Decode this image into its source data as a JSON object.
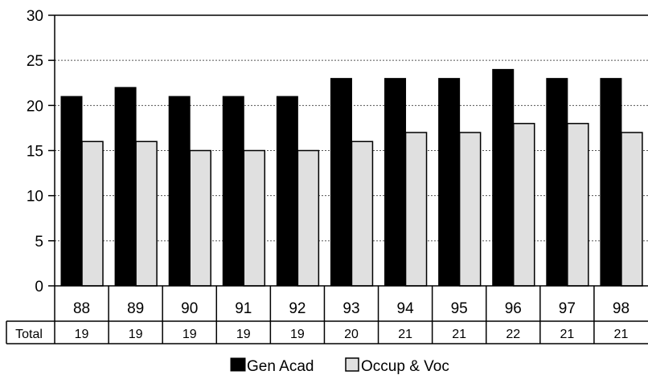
{
  "chart_data": {
    "type": "bar",
    "categories": [
      "88",
      "89",
      "90",
      "91",
      "92",
      "93",
      "94",
      "95",
      "96",
      "97",
      "98"
    ],
    "series": [
      {
        "name": "Gen Acad",
        "values": [
          21,
          22,
          21,
          21,
          21,
          23,
          23,
          23,
          24,
          23,
          23
        ],
        "color": "#000000"
      },
      {
        "name": "Occup & Voc",
        "values": [
          16,
          16,
          15,
          15,
          15,
          16,
          17,
          17,
          18,
          18,
          17
        ],
        "color": "#e0e0e0"
      }
    ],
    "ylim": [
      0,
      30
    ],
    "yticks": [
      0,
      5,
      10,
      15,
      20,
      25,
      30
    ],
    "grid": true,
    "legend_position": "bottom",
    "table": {
      "row_label": "Total",
      "values": [
        "19",
        "19",
        "19",
        "19",
        "19",
        "20",
        "21",
        "21",
        "22",
        "21",
        "21"
      ]
    }
  }
}
